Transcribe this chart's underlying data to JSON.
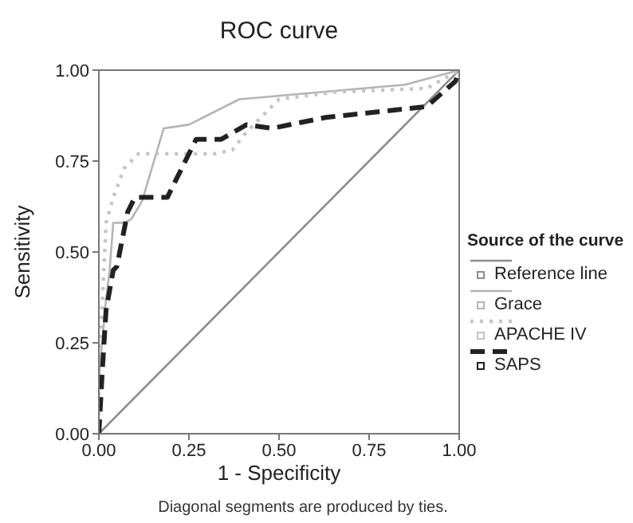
{
  "chart_data": {
    "type": "line",
    "title": "ROC curve",
    "xlabel": "1 - Specificity",
    "ylabel": "Sensitivity",
    "legend_title": "Source of the curve",
    "legend": "right",
    "grid": false,
    "marker": "none",
    "xlim": [
      0,
      1
    ],
    "ylim": [
      0,
      1
    ],
    "xticks": [
      {
        "value": 0,
        "label": "0.00"
      },
      {
        "value": 0.25,
        "label": "0.25"
      },
      {
        "value": 0.5,
        "label": "0.50"
      },
      {
        "value": 0.75,
        "label": "0.75"
      },
      {
        "value": 1,
        "label": "1.00"
      }
    ],
    "yticks": [
      {
        "value": 0,
        "label": "0.00"
      },
      {
        "value": 0.25,
        "label": "0.25"
      },
      {
        "value": 0.5,
        "label": "0.50"
      },
      {
        "value": 0.75,
        "label": "0.75"
      },
      {
        "value": 1,
        "label": "1.00"
      }
    ],
    "annotations": [
      "Diagonal segments are produced by ties."
    ],
    "series": [
      {
        "name": "Reference line",
        "color": "#8c8c8c",
        "line_style": "solid",
        "x": [
          0,
          1
        ],
        "values": [
          0,
          1
        ]
      },
      {
        "name": "Grace",
        "color": "#b4b4b4",
        "line_style": "solid",
        "x": [
          0,
          0.0,
          0.02,
          0.03,
          0.04,
          0.07,
          0.09,
          0.12,
          0.18,
          0.25,
          0.39,
          0.85,
          1
        ],
        "values": [
          0,
          0.15,
          0.37,
          0.45,
          0.58,
          0.58,
          0.59,
          0.64,
          0.84,
          0.85,
          0.92,
          0.96,
          1
        ]
      },
      {
        "name": "APACHE IV",
        "color": "#c4c4c4",
        "line_style": "dotted",
        "x": [
          0,
          0.0,
          0.01,
          0.02,
          0.04,
          0.07,
          0.11,
          0.32,
          0.37,
          0.41,
          0.5,
          0.66,
          0.91,
          1
        ],
        "values": [
          0,
          0.18,
          0.37,
          0.58,
          0.65,
          0.73,
          0.77,
          0.77,
          0.78,
          0.83,
          0.92,
          0.94,
          0.95,
          1
        ]
      },
      {
        "name": "SAPS",
        "color": "#222222",
        "line_style": "dashed",
        "x": [
          0,
          0.01,
          0.02,
          0.04,
          0.05,
          0.07,
          0.08,
          0.1,
          0.19,
          0.27,
          0.34,
          0.41,
          0.48,
          0.63,
          0.91,
          0.99,
          1
        ],
        "values": [
          0,
          0.18,
          0.34,
          0.45,
          0.46,
          0.56,
          0.61,
          0.65,
          0.65,
          0.81,
          0.81,
          0.85,
          0.84,
          0.87,
          0.9,
          0.97,
          1
        ]
      }
    ]
  }
}
